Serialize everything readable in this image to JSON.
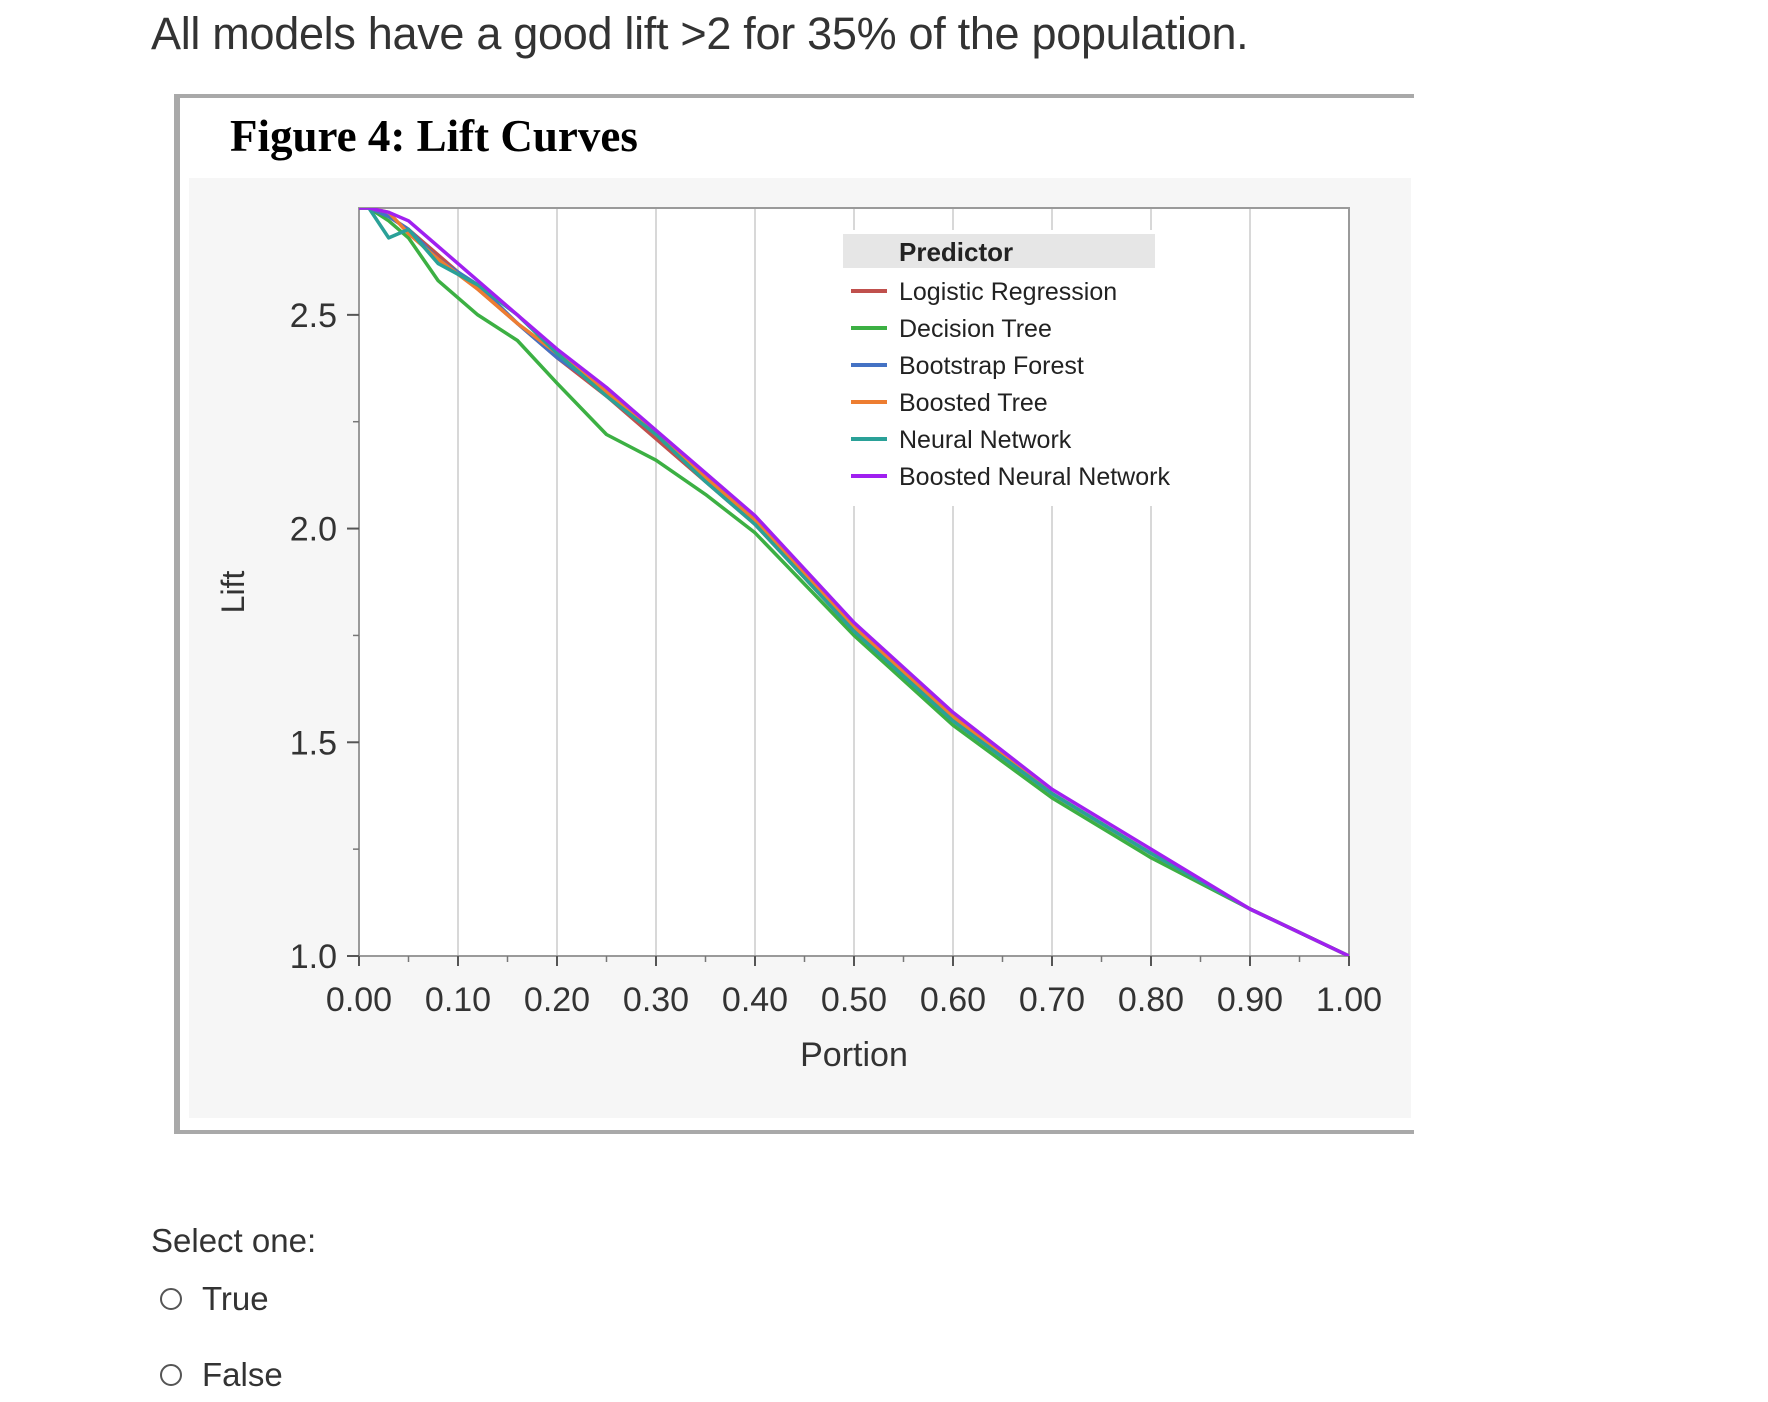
{
  "question": {
    "text": "All models have a good lift >2 for 35% of the population."
  },
  "figure": {
    "title": "Figure 4: Lift Curves"
  },
  "chart_data": {
    "type": "line",
    "title": "Figure 4: Lift Curves",
    "xlabel": "Portion",
    "ylabel": "Lift",
    "xlim": [
      0.0,
      1.0
    ],
    "ylim": [
      1.0,
      2.75
    ],
    "grid": true,
    "x_ticks": [
      "0.00",
      "0.10",
      "0.20",
      "0.30",
      "0.40",
      "0.50",
      "0.60",
      "0.70",
      "0.80",
      "0.90",
      "1.00"
    ],
    "y_ticks": [
      "1.0",
      "1.5",
      "2.0",
      "2.5"
    ],
    "legend": {
      "title": "Predictor",
      "placement": "top-right"
    },
    "x": [
      0.0,
      0.01,
      0.03,
      0.05,
      0.08,
      0.12,
      0.16,
      0.2,
      0.25,
      0.3,
      0.35,
      0.4,
      0.5,
      0.6,
      0.7,
      0.8,
      0.9,
      1.0
    ],
    "series": [
      {
        "name": "Logistic Regression",
        "color": "#c0504d",
        "values": [
          2.75,
          2.75,
          2.73,
          2.7,
          2.64,
          2.56,
          2.48,
          2.4,
          2.31,
          2.21,
          2.11,
          2.01,
          1.76,
          1.55,
          1.38,
          1.24,
          1.11,
          1.0
        ]
      },
      {
        "name": "Decision Tree",
        "color": "#3cb043",
        "values": [
          2.75,
          2.75,
          2.72,
          2.68,
          2.58,
          2.5,
          2.44,
          2.34,
          2.22,
          2.16,
          2.08,
          1.99,
          1.75,
          1.54,
          1.37,
          1.23,
          1.11,
          1.0
        ]
      },
      {
        "name": "Bootstrap Forest",
        "color": "#4472c4",
        "values": [
          2.75,
          2.75,
          2.73,
          2.7,
          2.63,
          2.57,
          2.48,
          2.4,
          2.32,
          2.22,
          2.12,
          2.01,
          1.77,
          1.56,
          1.38,
          1.24,
          1.11,
          1.0
        ]
      },
      {
        "name": "Boosted Tree",
        "color": "#ed7d31",
        "values": [
          2.75,
          2.75,
          2.74,
          2.69,
          2.63,
          2.56,
          2.48,
          2.41,
          2.32,
          2.22,
          2.12,
          2.02,
          1.77,
          1.56,
          1.38,
          1.24,
          1.11,
          1.0
        ]
      },
      {
        "name": "Neural Network",
        "color": "#2aa198",
        "values": [
          2.75,
          2.75,
          2.68,
          2.7,
          2.62,
          2.57,
          2.5,
          2.41,
          2.31,
          2.22,
          2.11,
          2.01,
          1.76,
          1.55,
          1.38,
          1.24,
          1.11,
          1.0
        ]
      },
      {
        "name": "Boosted Neural Network",
        "color": "#a020f0",
        "values": [
          2.75,
          2.75,
          2.74,
          2.72,
          2.66,
          2.58,
          2.5,
          2.42,
          2.33,
          2.23,
          2.13,
          2.03,
          1.78,
          1.57,
          1.39,
          1.25,
          1.11,
          1.0
        ]
      }
    ]
  },
  "answer": {
    "prompt": "Select one:",
    "options": [
      {
        "label": "True"
      },
      {
        "label": "False"
      }
    ]
  }
}
